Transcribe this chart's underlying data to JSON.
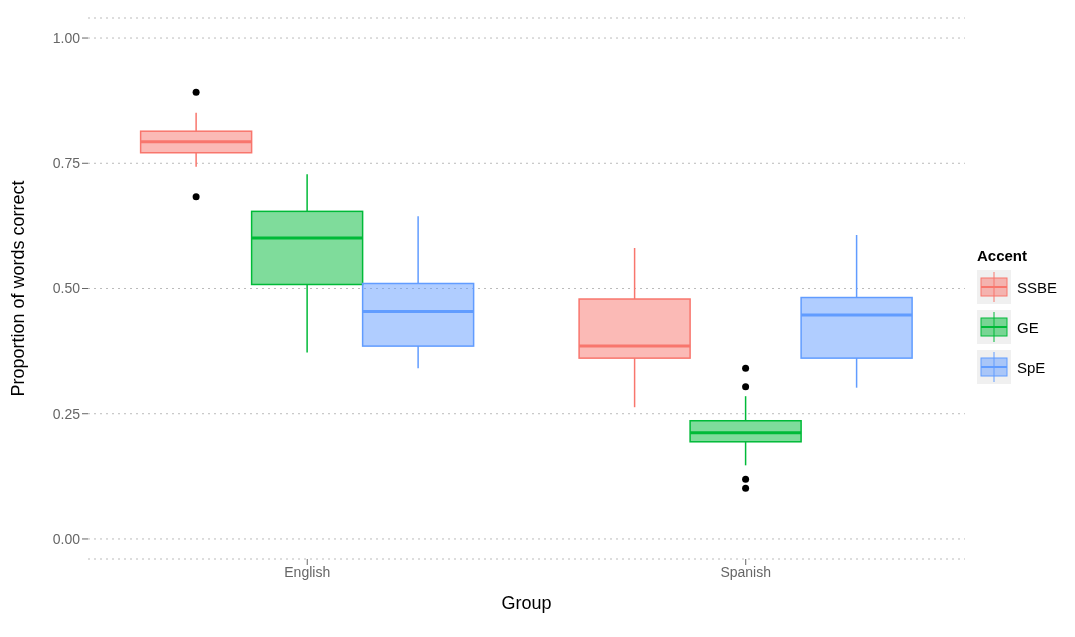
{
  "chart_data": {
    "type": "box",
    "xlabel": "Group",
    "ylabel": "Proportion of words correct",
    "legend_title": "Accent",
    "categories": [
      "English",
      "Spanish"
    ],
    "series": [
      {
        "name": "SSBE",
        "color": "#f8766d",
        "boxes": [
          {
            "low": 0.743,
            "q1": 0.771,
            "median": 0.793,
            "q3": 0.814,
            "high": 0.851,
            "outliers": [
              0.892,
              0.683
            ]
          },
          {
            "low": 0.263,
            "q1": 0.361,
            "median": 0.385,
            "q3": 0.479,
            "high": 0.581
          }
        ]
      },
      {
        "name": "GE",
        "color": "#00ba38",
        "boxes": [
          {
            "low": 0.372,
            "q1": 0.508,
            "median": 0.601,
            "q3": 0.654,
            "high": 0.728
          },
          {
            "low": 0.147,
            "q1": 0.194,
            "median": 0.212,
            "q3": 0.236,
            "high": 0.285,
            "outliers": [
              0.341,
              0.304,
              0.119,
              0.101
            ]
          }
        ]
      },
      {
        "name": "SpE",
        "color": "#619cff",
        "boxes": [
          {
            "low": 0.341,
            "q1": 0.385,
            "median": 0.454,
            "q3": 0.51,
            "high": 0.644
          },
          {
            "low": 0.302,
            "q1": 0.361,
            "median": 0.447,
            "q3": 0.482,
            "high": 0.607
          }
        ]
      }
    ],
    "ylim": [
      -0.04,
      1.04
    ],
    "yticks": [
      {
        "value": 0,
        "label": "0.00"
      },
      {
        "value": 0.25,
        "label": "0.25"
      },
      {
        "value": 0.5,
        "label": "0.50"
      },
      {
        "value": 0.75,
        "label": "0.75"
      },
      {
        "value": 1,
        "label": "1.00"
      }
    ],
    "grid": "y",
    "legend": "right"
  }
}
